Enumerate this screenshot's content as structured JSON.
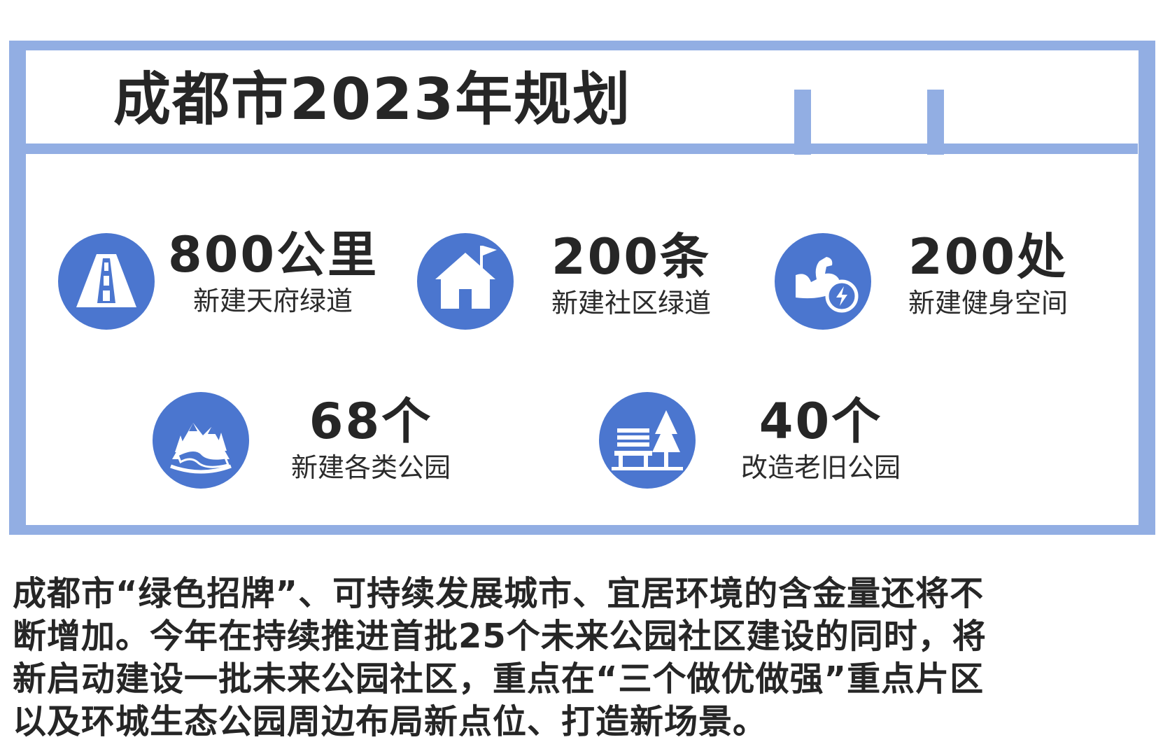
{
  "title": "成都市2023年规划",
  "colors": {
    "frame": "#92aee3",
    "icon": "#4b76cf",
    "text": "#262626"
  },
  "stats": [
    {
      "value": "800公里",
      "label": "新建天府绿道",
      "icon": "road-icon"
    },
    {
      "value": "200条",
      "label": "新建社区绿道",
      "icon": "house-flag-icon"
    },
    {
      "value": "200处",
      "label": "新建健身空间",
      "icon": "fitness-arm-icon"
    },
    {
      "value": "68个",
      "label": "新建各类公园",
      "icon": "mountain-river-icon"
    },
    {
      "value": "40个",
      "label": "改造老旧公园",
      "icon": "park-bench-tree-icon"
    }
  ],
  "paragraph": {
    "lines": [
      "成都市“绿色招牌”、可持续发展城市、宜居环境的含金量还将不",
      "断增加。今年在持续推进首批25个未来公园社区建设的同时，将",
      "新启动建设一批未来公园社区，重点在“三个做优做强”重点片区",
      "以及环城生态公园周边布局新点位、打造新场景。"
    ]
  }
}
